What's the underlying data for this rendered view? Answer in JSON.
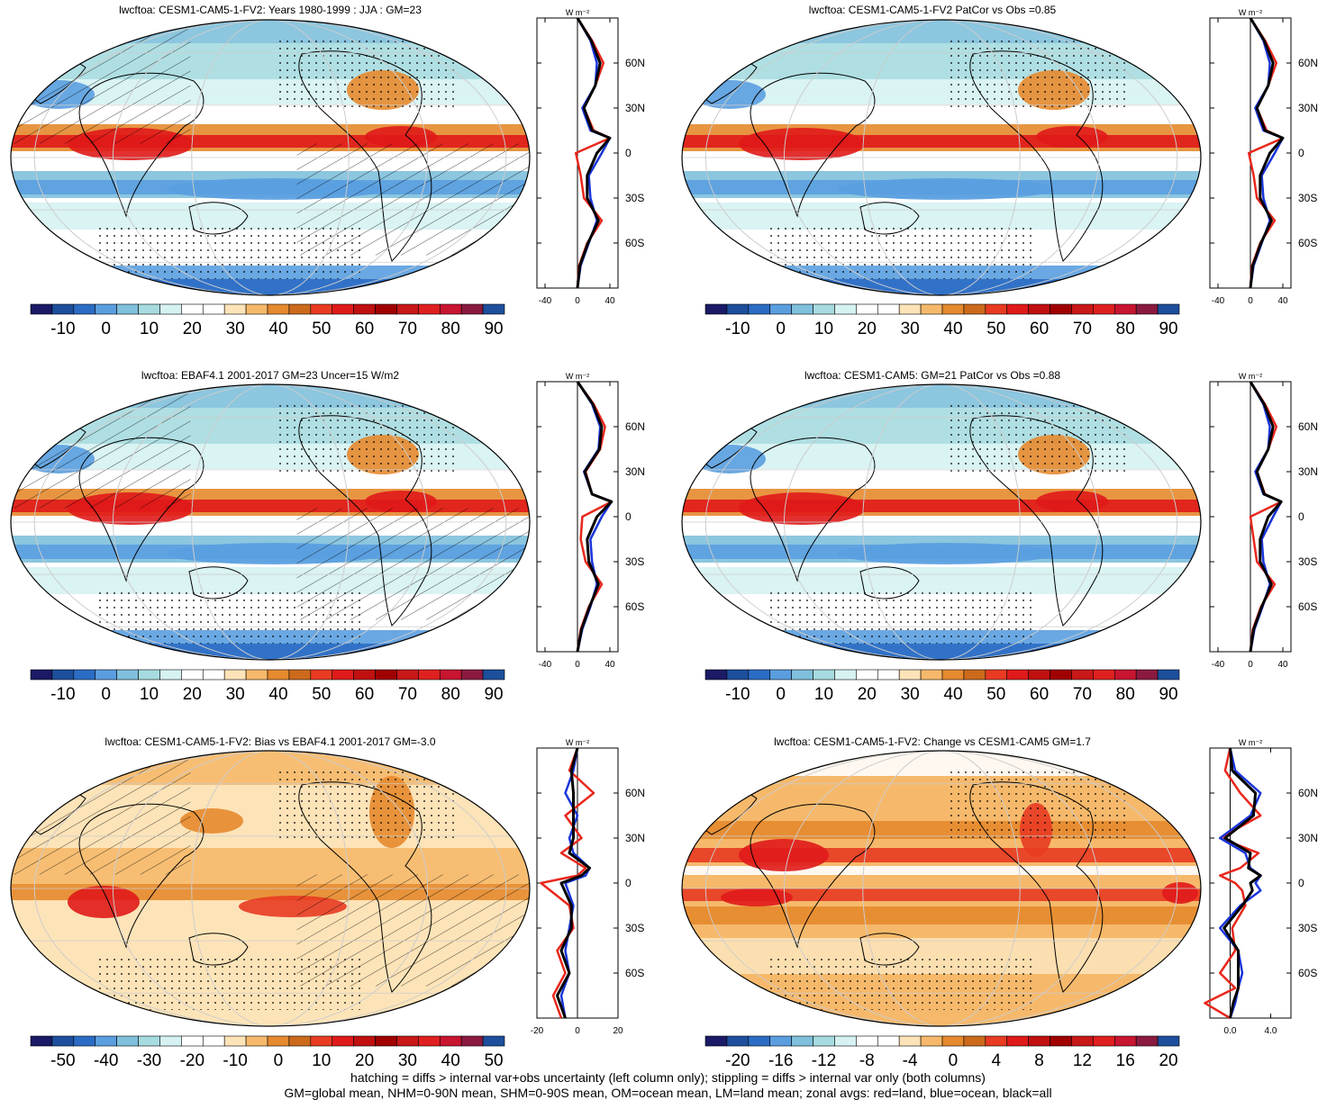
{
  "figure": {
    "footer_lines": [
      "hatching = diffs > internal var+obs uncertainty (left column only); stippling = diffs > internal var only (both columns)",
      "GM=global mean, NHM=0-90N mean, SHM=0-90S mean, OM=ocean mean, LM=land mean; zonal avgs: red=land, blue=ocean, black=all"
    ]
  },
  "panels": [
    {
      "title": "lwcftoa: CESM1-CAM5-1-FV2: Years 1980-1999 : JJA : GM=23",
      "colorbar_labels": [
        "-10",
        "0",
        "10",
        "20",
        "30",
        "40",
        "50",
        "60",
        "70",
        "80",
        "90"
      ],
      "profile_xticks": [
        "-40",
        "0",
        "40"
      ],
      "profile_yticks": [
        "60N",
        "30N",
        "0",
        "30S",
        "60S"
      ],
      "unit": "W m⁻²"
    },
    {
      "title": "lwcftoa: CESM1-CAM5-1-FV2 PatCor vs Obs =0.85",
      "colorbar_labels": [
        "-10",
        "0",
        "10",
        "20",
        "30",
        "40",
        "50",
        "60",
        "70",
        "80",
        "90"
      ],
      "profile_xticks": [
        "-40",
        "0",
        "40"
      ],
      "profile_yticks": [
        "60N",
        "30N",
        "0",
        "30S",
        "60S"
      ],
      "unit": "W m⁻²"
    },
    {
      "title": "lwcftoa: EBAF4.1 2001-2017 GM=23 Uncer=15 W/m2",
      "colorbar_labels": [
        "-10",
        "0",
        "10",
        "20",
        "30",
        "40",
        "50",
        "60",
        "70",
        "80",
        "90"
      ],
      "profile_xticks": [
        "-40",
        "0",
        "40"
      ],
      "profile_yticks": [
        "60N",
        "30N",
        "0",
        "30S",
        "60S"
      ],
      "unit": "W m⁻²"
    },
    {
      "title": "lwcftoa: CESM1-CAM5: GM=21 PatCor vs Obs =0.88",
      "colorbar_labels": [
        "-10",
        "0",
        "10",
        "20",
        "30",
        "40",
        "50",
        "60",
        "70",
        "80",
        "90"
      ],
      "profile_xticks": [
        "-40",
        "0",
        "40"
      ],
      "profile_yticks": [
        "60N",
        "30N",
        "0",
        "30S",
        "60S"
      ],
      "unit": "W m⁻²"
    },
    {
      "title": "lwcftoa: CESM1-CAM5-1-FV2: Bias vs EBAF4.1 2001-2017 GM=-3.0",
      "colorbar_labels": [
        "-50",
        "-40",
        "-30",
        "-20",
        "-10",
        "0",
        "10",
        "20",
        "30",
        "40",
        "50"
      ],
      "profile_xticks": [
        "-20",
        "0",
        "20"
      ],
      "profile_yticks": [
        "60N",
        "30N",
        "0",
        "30S",
        "60S"
      ],
      "unit": "W m⁻²"
    },
    {
      "title": "lwcftoa: CESM1-CAM5-1-FV2: Change vs CESM1-CAM5 GM=1.7",
      "colorbar_labels": [
        "-20",
        "-16",
        "-12",
        "-8",
        "-4",
        "0",
        "4",
        "8",
        "12",
        "16",
        "20"
      ],
      "profile_xticks": [
        "0.0",
        "4.0"
      ],
      "profile_yticks": [
        "60N",
        "30N",
        "0",
        "30S",
        "60S"
      ],
      "unit": "W m⁻²"
    }
  ],
  "colors": {
    "colorbar_22": [
      "#1a1a66",
      "#1d4f9c",
      "#2b6cc4",
      "#5a9ee0",
      "#7fc0dc",
      "#a6dbe0",
      "#d6f2f2",
      "#ffffff",
      "#ffffff",
      "#fde3b8",
      "#f6b96b",
      "#e68a2e",
      "#cc6a1c",
      "#e83b22",
      "#e01a1a",
      "#c01010",
      "#a00000",
      "#c81818",
      "#e02020",
      "#c81530",
      "#8a1a40",
      "#1d4f9c"
    ],
    "land": "#d9e9f2",
    "red": "#e8271c",
    "blue": "#1a35d9",
    "black": "#000000"
  },
  "chart_data": [
    {
      "type": "heatmap",
      "panel": "model 1980-1999 JJA",
      "title": "lwcftoa: CESM1-CAM5-1-FV2: Years 1980-1999 : JJA : GM=23",
      "xlabel": "",
      "ylabel": "",
      "global_mean": 23,
      "colorbar": {
        "min": -10,
        "max": 90,
        "step": 10
      },
      "zonal_profile": {
        "lat": [
          -90,
          -75,
          -60,
          -45,
          -30,
          -15,
          0,
          10,
          15,
          30,
          45,
          60,
          75,
          90
        ],
        "land": [
          0,
          2,
          12,
          30,
          8,
          4,
          -2,
          40,
          20,
          8,
          22,
          32,
          18,
          0
        ],
        "ocean": [
          0,
          4,
          14,
          24,
          16,
          14,
          30,
          40,
          16,
          6,
          22,
          24,
          16,
          0
        ],
        "all": [
          0,
          3,
          13,
          26,
          12,
          12,
          24,
          40,
          18,
          8,
          22,
          28,
          17,
          0
        ],
        "xlim": [
          -50,
          50
        ]
      }
    },
    {
      "type": "heatmap",
      "panel": "model patcor",
      "title": "lwcftoa: CESM1-CAM5-1-FV2 PatCor vs Obs =0.85",
      "xlabel": "",
      "ylabel": "",
      "pattern_correlation": 0.85,
      "colorbar": {
        "min": -10,
        "max": 90,
        "step": 10
      },
      "zonal_profile": {
        "lat": [
          -90,
          -75,
          -60,
          -45,
          -30,
          -15,
          0,
          10,
          15,
          30,
          45,
          60,
          75,
          90
        ],
        "land": [
          0,
          2,
          12,
          30,
          8,
          4,
          -2,
          40,
          20,
          8,
          22,
          32,
          18,
          0
        ],
        "ocean": [
          0,
          4,
          14,
          24,
          16,
          14,
          30,
          40,
          16,
          6,
          22,
          24,
          16,
          0
        ],
        "all": [
          0,
          3,
          13,
          26,
          12,
          12,
          24,
          40,
          18,
          8,
          22,
          28,
          17,
          0
        ],
        "xlim": [
          -50,
          50
        ]
      }
    },
    {
      "type": "heatmap",
      "panel": "obs EBAF4.1",
      "title": "lwcftoa: EBAF4.1 2001-2017 GM=23 Uncer=15 W/m2",
      "xlabel": "",
      "ylabel": "",
      "global_mean": 23,
      "uncertainty": 15,
      "colorbar": {
        "min": -10,
        "max": 90,
        "step": 10
      },
      "zonal_profile": {
        "lat": [
          -90,
          -75,
          -60,
          -45,
          -30,
          -15,
          0,
          10,
          15,
          30,
          45,
          60,
          75,
          90
        ],
        "land": [
          0,
          4,
          14,
          30,
          10,
          4,
          6,
          42,
          18,
          10,
          28,
          34,
          20,
          0
        ],
        "ocean": [
          0,
          6,
          16,
          24,
          18,
          16,
          30,
          42,
          18,
          8,
          26,
          28,
          18,
          0
        ],
        "all": [
          0,
          5,
          15,
          26,
          14,
          12,
          24,
          42,
          18,
          9,
          27,
          30,
          19,
          0
        ],
        "xlim": [
          -50,
          50
        ]
      }
    },
    {
      "type": "heatmap",
      "panel": "CESM1-CAM5",
      "title": "lwcftoa: CESM1-CAM5: GM=21 PatCor vs Obs =0.88",
      "xlabel": "",
      "ylabel": "",
      "global_mean": 21,
      "pattern_correlation": 0.88,
      "colorbar": {
        "min": -10,
        "max": 90,
        "step": 10
      },
      "zonal_profile": {
        "lat": [
          -90,
          -75,
          -60,
          -45,
          -30,
          -15,
          0,
          10,
          15,
          30,
          45,
          60,
          75,
          90
        ],
        "land": [
          0,
          3,
          13,
          30,
          8,
          4,
          0,
          38,
          18,
          8,
          22,
          32,
          18,
          0
        ],
        "ocean": [
          0,
          5,
          15,
          24,
          16,
          14,
          28,
          38,
          16,
          6,
          22,
          24,
          16,
          0
        ],
        "all": [
          0,
          4,
          14,
          26,
          12,
          12,
          22,
          38,
          17,
          8,
          22,
          28,
          17,
          0
        ],
        "xlim": [
          -50,
          50
        ]
      }
    },
    {
      "type": "heatmap",
      "panel": "bias",
      "title": "lwcftoa: CESM1-CAM5-1-FV2: Bias vs EBAF4.1 2001-2017 GM=-3.0",
      "xlabel": "",
      "ylabel": "",
      "global_mean": -3.0,
      "colorbar": {
        "min": -50,
        "max": 50,
        "step": 10
      },
      "zonal_profile": {
        "lat": [
          -90,
          -75,
          -60,
          -45,
          -30,
          -15,
          0,
          5,
          10,
          20,
          30,
          45,
          60,
          75,
          90
        ],
        "land": [
          -8,
          -12,
          -6,
          -10,
          -2,
          -4,
          -18,
          0,
          4,
          -8,
          2,
          -6,
          8,
          -4,
          0
        ],
        "ocean": [
          -6,
          -8,
          -4,
          -6,
          -4,
          -2,
          -6,
          4,
          6,
          -2,
          -4,
          0,
          -6,
          -2,
          0
        ],
        "all": [
          -6,
          -10,
          -4,
          -8,
          -3,
          -3,
          -8,
          2,
          6,
          -4,
          -2,
          -2,
          -2,
          -3,
          0
        ],
        "xlim": [
          -20,
          20
        ]
      }
    },
    {
      "type": "heatmap",
      "panel": "change",
      "title": "lwcftoa: CESM1-CAM5-1-FV2: Change vs CESM1-CAM5 GM=1.7",
      "xlabel": "",
      "ylabel": "",
      "global_mean": 1.7,
      "colorbar": {
        "min": -20,
        "max": 20,
        "step": 4
      },
      "zonal_profile": {
        "lat": [
          -90,
          -80,
          -70,
          -60,
          -45,
          -30,
          -15,
          -5,
          0,
          5,
          10,
          20,
          30,
          45,
          60,
          75,
          90
        ],
        "land": [
          0,
          -2.5,
          0.5,
          -1,
          0.5,
          0.2,
          1.5,
          1.2,
          0.5,
          -1,
          1,
          2.8,
          -1,
          3,
          1,
          -0.5,
          0
        ],
        "ocean": [
          0,
          0.5,
          0.8,
          1.2,
          0.8,
          -1,
          1,
          3,
          2.5,
          3,
          2,
          1.5,
          -1,
          2,
          3,
          0.5,
          0
        ],
        "all": [
          0,
          0.3,
          0.8,
          0.8,
          0.8,
          -0.6,
          1.2,
          2.2,
          2,
          3,
          1.8,
          2,
          -0.5,
          2.3,
          2.5,
          0.2,
          0
        ],
        "xlim": [
          -2,
          6
        ]
      }
    }
  ]
}
